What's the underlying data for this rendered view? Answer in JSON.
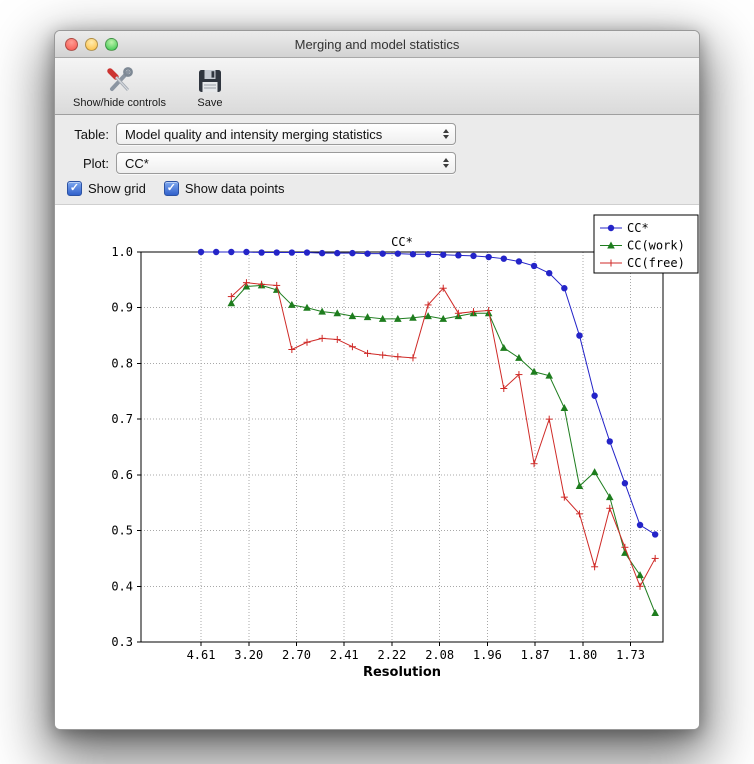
{
  "window": {
    "title": "Merging and model statistics"
  },
  "toolbar": {
    "items": [
      {
        "label": "Show/hide controls",
        "icon": "tools-icon"
      },
      {
        "label": "Save",
        "icon": "save-icon"
      }
    ]
  },
  "controls": {
    "table_label": "Table:",
    "table_value": "Model quality and intensity merging statistics",
    "plot_label": "Plot:",
    "plot_value": "CC*",
    "show_grid_label": "Show grid",
    "show_grid_checked": true,
    "show_data_points_label": "Show data points",
    "show_data_points_checked": true
  },
  "icons": {
    "checkmark": "✓"
  },
  "chart_data": {
    "type": "line",
    "title": "CC*",
    "xlabel": "Resolution",
    "ylabel": "",
    "ylim": [
      0.3,
      1.0
    ],
    "yticks": [
      0.3,
      0.4,
      0.5,
      0.6,
      0.7,
      0.8,
      0.9,
      1.0
    ],
    "xticklabels": [
      "4.61",
      "3.20",
      "2.70",
      "2.41",
      "2.22",
      "2.08",
      "1.96",
      "1.87",
      "1.80",
      "1.73"
    ],
    "grid": true,
    "show_data_points": true,
    "legend_position": "upper right",
    "series": [
      {
        "name": "CC*",
        "color": "#2424c8",
        "marker": "circle",
        "values": [
          1.0,
          1.0,
          1.0,
          1.0,
          0.999,
          0.999,
          0.999,
          0.999,
          0.998,
          0.998,
          0.998,
          0.997,
          0.997,
          0.997,
          0.996,
          0.996,
          0.995,
          0.994,
          0.993,
          0.991,
          0.988,
          0.983,
          0.975,
          0.962,
          0.935,
          0.85,
          0.742,
          0.66,
          0.585,
          0.51,
          0.493
        ]
      },
      {
        "name": "CC(work)",
        "color": "#1e7d1e",
        "marker": "triangle",
        "values": [
          null,
          null,
          0.908,
          0.938,
          0.94,
          0.932,
          0.905,
          0.9,
          0.893,
          0.89,
          0.885,
          0.883,
          0.88,
          0.88,
          0.882,
          0.885,
          0.88,
          0.885,
          0.89,
          0.89,
          0.828,
          0.81,
          0.785,
          0.778,
          0.72,
          0.58,
          0.605,
          0.56,
          0.46,
          0.42,
          0.352
        ]
      },
      {
        "name": "CC(free)",
        "color": "#cf2a27",
        "marker": "plus",
        "values": [
          null,
          null,
          0.92,
          0.945,
          0.942,
          0.94,
          0.825,
          0.838,
          0.845,
          0.843,
          0.83,
          0.818,
          0.815,
          0.812,
          0.81,
          0.905,
          0.935,
          0.89,
          0.893,
          0.895,
          0.755,
          0.78,
          0.62,
          0.7,
          0.56,
          0.53,
          0.435,
          0.54,
          0.47,
          0.4,
          0.45
        ]
      }
    ]
  }
}
